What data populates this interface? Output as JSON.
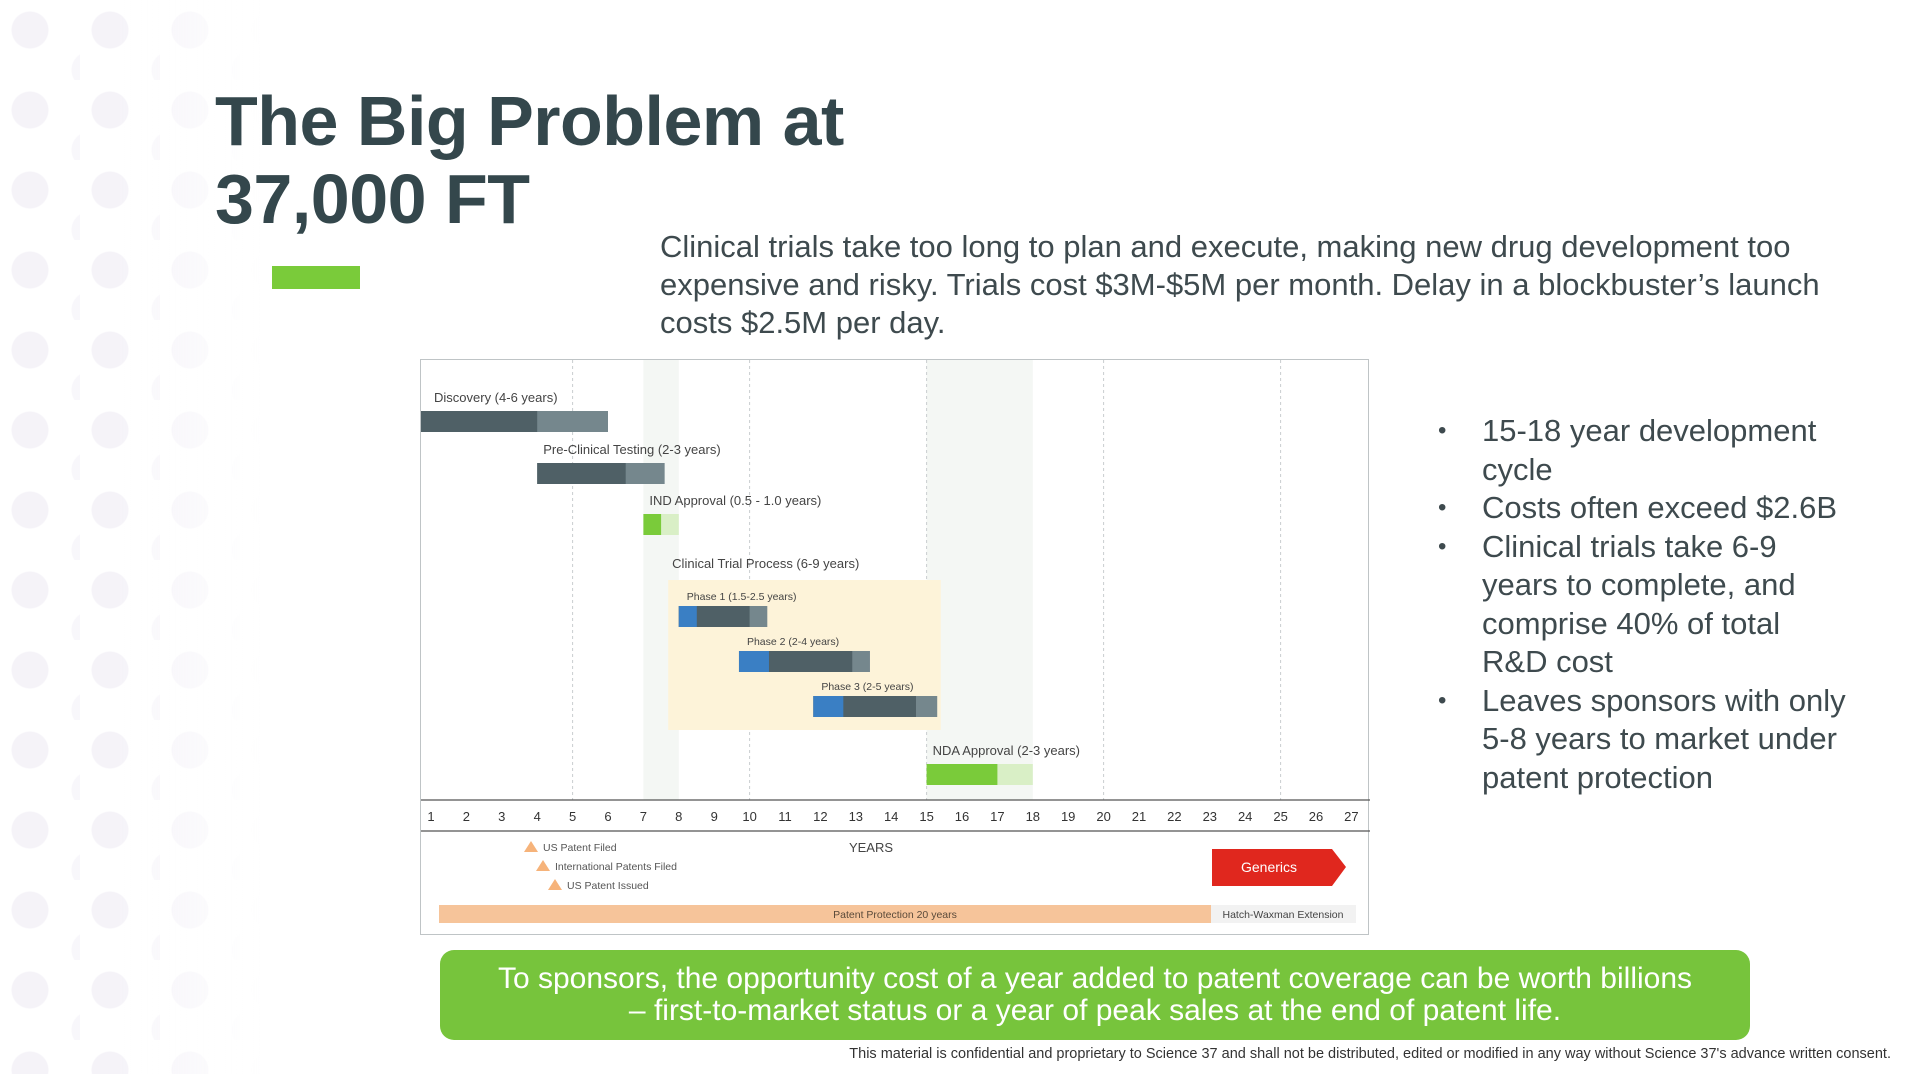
{
  "slide": {
    "title_line1": "The Big Problem at",
    "title_line2": "37,000 FT",
    "intro": "Clinical trials take too long to plan and execute, making new drug development too expensive and risky.  Trials cost $3M-$5M per month.  Delay in a blockbuster’s launch costs $2.5M per day.",
    "callout_line1": "To sponsors, the opportunity cost of a year added to patent coverage can be worth billions",
    "callout_line2": "– first-to-market status or a year of peak sales at the end of patent life.",
    "footer": "This material is confidential and proprietary to Science 37 and shall not be distributed, edited or modified in any way without Science 37's advance written consent.",
    "accent_color": "#7acb3a"
  },
  "bullets": [
    "15-18 year development cycle",
    "Costs often exceed $2.6B",
    "Clinical trials take 6-9 years to complete, and comprise 40% of total R&D cost",
    "Leaves sponsors with only 5-8 years to market under patent protection"
  ],
  "timeline": {
    "axis_label": "YEARS",
    "years": [
      1,
      2,
      3,
      4,
      5,
      6,
      7,
      8,
      9,
      10,
      11,
      12,
      13,
      14,
      15,
      16,
      17,
      18,
      19,
      20,
      21,
      22,
      23,
      24,
      25,
      26,
      27
    ],
    "phases": [
      {
        "label": "Discovery (4-6 years)",
        "start": 1,
        "min_end": 4,
        "max_end": 6,
        "color_min": "#4f6066",
        "color_max": "#75878d"
      },
      {
        "label": "Pre-Clinical Testing (2-3 years)",
        "start": 4,
        "min_end": 6.5,
        "max_end": 7.6,
        "color_min": "#4f6066",
        "color_max": "#75878d"
      },
      {
        "label": "IND Approval (0.5 - 1.0 years)",
        "start": 7,
        "min_end": 7.5,
        "max_end": 8,
        "color_min": "#7acb3a",
        "color_max": "#d9efc6"
      },
      {
        "label": "NDA Approval (2-3 years)",
        "start": 15,
        "min_end": 17,
        "max_end": 18,
        "color_min": "#7acb3a",
        "color_max": "#d9efc6"
      }
    ],
    "clinical": {
      "label": "Clinical Trial Process (6-9 years)",
      "start": 7.7,
      "end": 15.4,
      "box_color": "#fdf3d9",
      "subphases": [
        {
          "label": "Phase 1 (1.5-2.5 years)",
          "start": 8,
          "min_end": 10,
          "max_end": 10.5
        },
        {
          "label": "Phase 2 (2-4 years)",
          "start": 9.7,
          "min_end": 12.9,
          "max_end": 13.4
        },
        {
          "label": "Phase 3 (2-5 years)",
          "start": 11.8,
          "min_end": 14.7,
          "max_end": 15.3
        }
      ]
    },
    "milestones": [
      "US Patent Filed",
      "International Patents Filed",
      "US Patent Issued"
    ],
    "generics_label": "Generics",
    "patent_label": "Patent Protection 20 years",
    "extension_label": "Hatch-Waxman Extension",
    "generics_color": "#e0271e",
    "patent_color": "#f6c49a",
    "phase_blue": "#3a7fc4"
  }
}
